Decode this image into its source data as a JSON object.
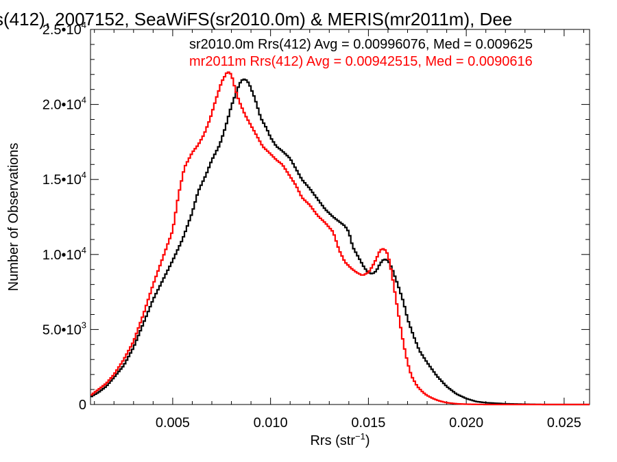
{
  "chart_data": {
    "type": "line",
    "title": "s(412), 2007152, SeaWiFS(sr2010.0m) & MERIS(mr2011m), Dee",
    "xlabel": "Rrs (str",
    "xlabel_sup": "−1",
    "xlabel_close": ")",
    "ylabel": "Number of Observations",
    "xlim": [
      0.0008,
      0.0263
    ],
    "ylim": [
      0,
      25000
    ],
    "x_ticks": [
      0.005,
      0.01,
      0.015,
      0.02,
      0.025
    ],
    "x_tick_labels": [
      "0.005",
      "0.010",
      "0.015",
      "0.020",
      "0.025"
    ],
    "y_ticks": [
      0,
      5000,
      10000,
      15000,
      20000,
      25000
    ],
    "y_tick_labels": [
      {
        "mant": "0",
        "exp": ""
      },
      {
        "mant": "5.0•10",
        "exp": "3"
      },
      {
        "mant": "1.0•10",
        "exp": "4"
      },
      {
        "mant": "1.5•10",
        "exp": "4"
      },
      {
        "mant": "2.0•10",
        "exp": "4"
      },
      {
        "mant": "2.5•10",
        "exp": "4"
      }
    ],
    "grid": false,
    "legend_position": "top-right",
    "series": [
      {
        "name": "sr2010.0m Rrs(412) Avg = 0.00996076, Med = 0.009625",
        "color": "#000000",
        "x": [
          0.0008,
          0.0012,
          0.0016,
          0.002,
          0.0025,
          0.003,
          0.0035,
          0.004,
          0.0045,
          0.005,
          0.0055,
          0.006,
          0.0063,
          0.0067,
          0.007,
          0.0074,
          0.0077,
          0.008,
          0.0083,
          0.0085,
          0.0087,
          0.0089,
          0.0092,
          0.0095,
          0.0098,
          0.01,
          0.0103,
          0.0106,
          0.011,
          0.0113,
          0.0116,
          0.012,
          0.0124,
          0.0128,
          0.0132,
          0.0135,
          0.0138,
          0.014,
          0.0142,
          0.0145,
          0.0148,
          0.015,
          0.0152,
          0.0154,
          0.0156,
          0.0158,
          0.016,
          0.0162,
          0.0165,
          0.0168,
          0.017,
          0.0173,
          0.0176,
          0.018,
          0.0185,
          0.019,
          0.0195,
          0.02,
          0.0205,
          0.021,
          0.022,
          0.023,
          0.024,
          0.025,
          0.0263
        ],
        "y": [
          500,
          800,
          1200,
          1800,
          2600,
          3800,
          5400,
          7000,
          8300,
          9600,
          11000,
          12800,
          14200,
          15300,
          16300,
          17300,
          18500,
          19900,
          21000,
          21600,
          21700,
          21400,
          20400,
          19100,
          18400,
          17800,
          17200,
          16900,
          16400,
          15700,
          15000,
          14400,
          13700,
          13000,
          12500,
          12200,
          11900,
          11500,
          10500,
          9800,
          9100,
          8800,
          8700,
          8900,
          9400,
          9700,
          9600,
          9100,
          8000,
          6800,
          5700,
          4600,
          3600,
          2800,
          1900,
          1200,
          700,
          400,
          200,
          120,
          50,
          20,
          0,
          0,
          0
        ]
      },
      {
        "name": "mr2011m Rrs(412) Avg = 0.00942515, Med = 0.0090616",
        "color": "#ff0000",
        "x": [
          0.0008,
          0.0012,
          0.0016,
          0.002,
          0.0025,
          0.003,
          0.0035,
          0.004,
          0.0045,
          0.005,
          0.0053,
          0.0056,
          0.006,
          0.0063,
          0.0066,
          0.0069,
          0.0072,
          0.0075,
          0.0078,
          0.008,
          0.0082,
          0.0084,
          0.0087,
          0.009,
          0.0093,
          0.0096,
          0.01,
          0.0103,
          0.0106,
          0.011,
          0.0113,
          0.0116,
          0.012,
          0.0124,
          0.0128,
          0.0132,
          0.0135,
          0.0138,
          0.0141,
          0.0144,
          0.0147,
          0.015,
          0.0152,
          0.0154,
          0.0156,
          0.0158,
          0.016,
          0.0162,
          0.0164,
          0.0166,
          0.0168,
          0.017,
          0.0172,
          0.0175,
          0.0178,
          0.018,
          0.0183,
          0.0186,
          0.019,
          0.0195,
          0.02,
          0.021,
          0.022,
          0.0263
        ],
        "y": [
          600,
          1000,
          1400,
          2000,
          3000,
          4200,
          6000,
          8000,
          9800,
          11600,
          14000,
          15800,
          16800,
          17300,
          18000,
          19000,
          20300,
          21500,
          22200,
          22000,
          21000,
          20200,
          19300,
          18600,
          17900,
          17200,
          16700,
          16300,
          16000,
          15200,
          14600,
          13800,
          13300,
          12600,
          12100,
          11500,
          10300,
          9500,
          9100,
          8800,
          8600,
          8800,
          9200,
          9700,
          10300,
          10400,
          10000,
          8700,
          7100,
          5500,
          4000,
          2800,
          1900,
          1200,
          800,
          600,
          400,
          250,
          120,
          50,
          20,
          0,
          0,
          0
        ]
      }
    ]
  }
}
